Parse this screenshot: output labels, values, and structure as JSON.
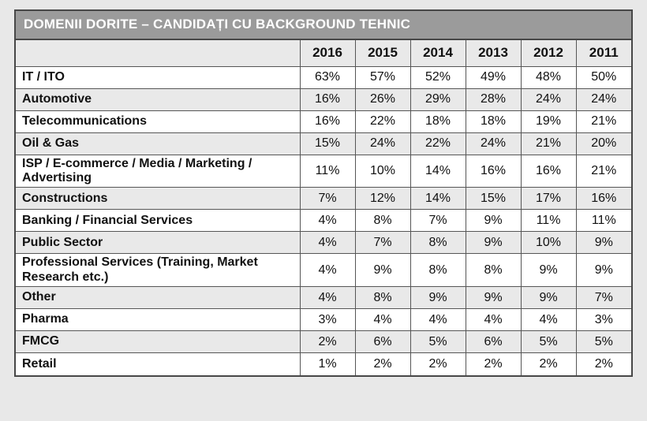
{
  "title": "DOMENII DORITE – CANDIDAȚI CU BACKGROUND TEHNIC",
  "colors": {
    "page_bg": "#e8e8e8",
    "title_bg": "#9b9b9b",
    "title_text": "#ffffff",
    "row_alt": "#e9e9e9",
    "row_white": "#ffffff",
    "border_dark": "#474747",
    "border_mid": "#565656",
    "text": "#111111"
  },
  "chart_data": {
    "type": "table",
    "title": "DOMENII DORITE – CANDIDAȚI CU BACKGROUND TEHNIC",
    "unit": "%",
    "columns": [
      "2016",
      "2015",
      "2014",
      "2013",
      "2012",
      "2011"
    ],
    "rows": [
      {
        "label": "IT / ITO",
        "values": [
          63,
          57,
          52,
          49,
          48,
          50
        ]
      },
      {
        "label": "Automotive",
        "values": [
          16,
          26,
          29,
          28,
          24,
          24
        ]
      },
      {
        "label": "Telecommunications",
        "values": [
          16,
          22,
          18,
          18,
          19,
          21
        ]
      },
      {
        "label": "Oil & Gas",
        "values": [
          15,
          24,
          22,
          24,
          21,
          20
        ]
      },
      {
        "label": "ISP / E-commerce / Media / Marketing / Advertising",
        "values": [
          11,
          10,
          14,
          16,
          16,
          21
        ]
      },
      {
        "label": "Constructions",
        "values": [
          7,
          12,
          14,
          15,
          17,
          16
        ]
      },
      {
        "label": "Banking / Financial Services",
        "values": [
          4,
          8,
          7,
          9,
          11,
          11
        ]
      },
      {
        "label": "Public Sector",
        "values": [
          4,
          7,
          8,
          9,
          10,
          9
        ]
      },
      {
        "label": "Professional Services (Training, Market Research etc.)",
        "values": [
          4,
          9,
          8,
          8,
          9,
          9
        ]
      },
      {
        "label": "Other",
        "values": [
          4,
          8,
          9,
          9,
          9,
          7
        ]
      },
      {
        "label": "Pharma",
        "values": [
          3,
          4,
          4,
          4,
          4,
          3
        ]
      },
      {
        "label": "FMCG",
        "values": [
          2,
          6,
          5,
          6,
          5,
          5
        ]
      },
      {
        "label": "Retail",
        "values": [
          1,
          2,
          2,
          2,
          2,
          2
        ]
      }
    ]
  }
}
